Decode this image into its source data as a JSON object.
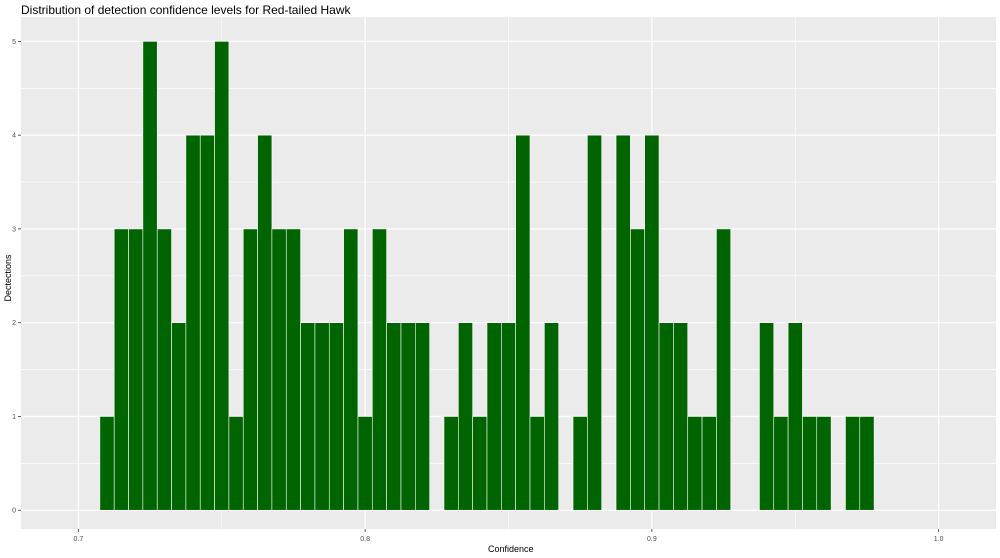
{
  "chart_data": {
    "type": "bar",
    "title": "Distribution of detection confidence levels for Red-tailed Hawk",
    "xlabel": "Confidence",
    "ylabel": "Dectections",
    "bar_color": "#006400",
    "panel_background": "#ebebeb",
    "grid_color": "#ffffff",
    "grid": true,
    "legend": "none",
    "xlim": [
      0.68,
      1.02
    ],
    "ylim": [
      -0.2,
      5.26
    ],
    "x_ticks": [
      0.7,
      0.8,
      0.9,
      1.0
    ],
    "x_tick_labels": [
      "0.7",
      "0.8",
      "0.9",
      "1.0"
    ],
    "y_ticks": [
      0,
      1,
      2,
      3,
      4,
      5
    ],
    "y_tick_labels": [
      "0",
      "1",
      "2",
      "3",
      "4",
      "5"
    ],
    "bin_width": 0.005,
    "bins": [
      {
        "x": 0.71,
        "count": 1
      },
      {
        "x": 0.715,
        "count": 3
      },
      {
        "x": 0.72,
        "count": 3
      },
      {
        "x": 0.725,
        "count": 5
      },
      {
        "x": 0.73,
        "count": 3
      },
      {
        "x": 0.735,
        "count": 2
      },
      {
        "x": 0.74,
        "count": 4
      },
      {
        "x": 0.745,
        "count": 4
      },
      {
        "x": 0.75,
        "count": 5
      },
      {
        "x": 0.755,
        "count": 1
      },
      {
        "x": 0.76,
        "count": 3
      },
      {
        "x": 0.765,
        "count": 4
      },
      {
        "x": 0.77,
        "count": 3
      },
      {
        "x": 0.775,
        "count": 3
      },
      {
        "x": 0.78,
        "count": 2
      },
      {
        "x": 0.785,
        "count": 2
      },
      {
        "x": 0.79,
        "count": 2
      },
      {
        "x": 0.795,
        "count": 3
      },
      {
        "x": 0.8,
        "count": 1
      },
      {
        "x": 0.805,
        "count": 3
      },
      {
        "x": 0.81,
        "count": 2
      },
      {
        "x": 0.815,
        "count": 2
      },
      {
        "x": 0.82,
        "count": 2
      },
      {
        "x": 0.83,
        "count": 1
      },
      {
        "x": 0.835,
        "count": 2
      },
      {
        "x": 0.84,
        "count": 1
      },
      {
        "x": 0.845,
        "count": 2
      },
      {
        "x": 0.85,
        "count": 2
      },
      {
        "x": 0.855,
        "count": 4
      },
      {
        "x": 0.86,
        "count": 1
      },
      {
        "x": 0.865,
        "count": 2
      },
      {
        "x": 0.875,
        "count": 1
      },
      {
        "x": 0.88,
        "count": 4
      },
      {
        "x": 0.89,
        "count": 4
      },
      {
        "x": 0.895,
        "count": 3
      },
      {
        "x": 0.9,
        "count": 4
      },
      {
        "x": 0.905,
        "count": 2
      },
      {
        "x": 0.91,
        "count": 2
      },
      {
        "x": 0.915,
        "count": 1
      },
      {
        "x": 0.92,
        "count": 1
      },
      {
        "x": 0.925,
        "count": 3
      },
      {
        "x": 0.94,
        "count": 2
      },
      {
        "x": 0.945,
        "count": 1
      },
      {
        "x": 0.95,
        "count": 2
      },
      {
        "x": 0.955,
        "count": 1
      },
      {
        "x": 0.96,
        "count": 1
      },
      {
        "x": 0.97,
        "count": 1
      },
      {
        "x": 0.975,
        "count": 1
      }
    ]
  }
}
